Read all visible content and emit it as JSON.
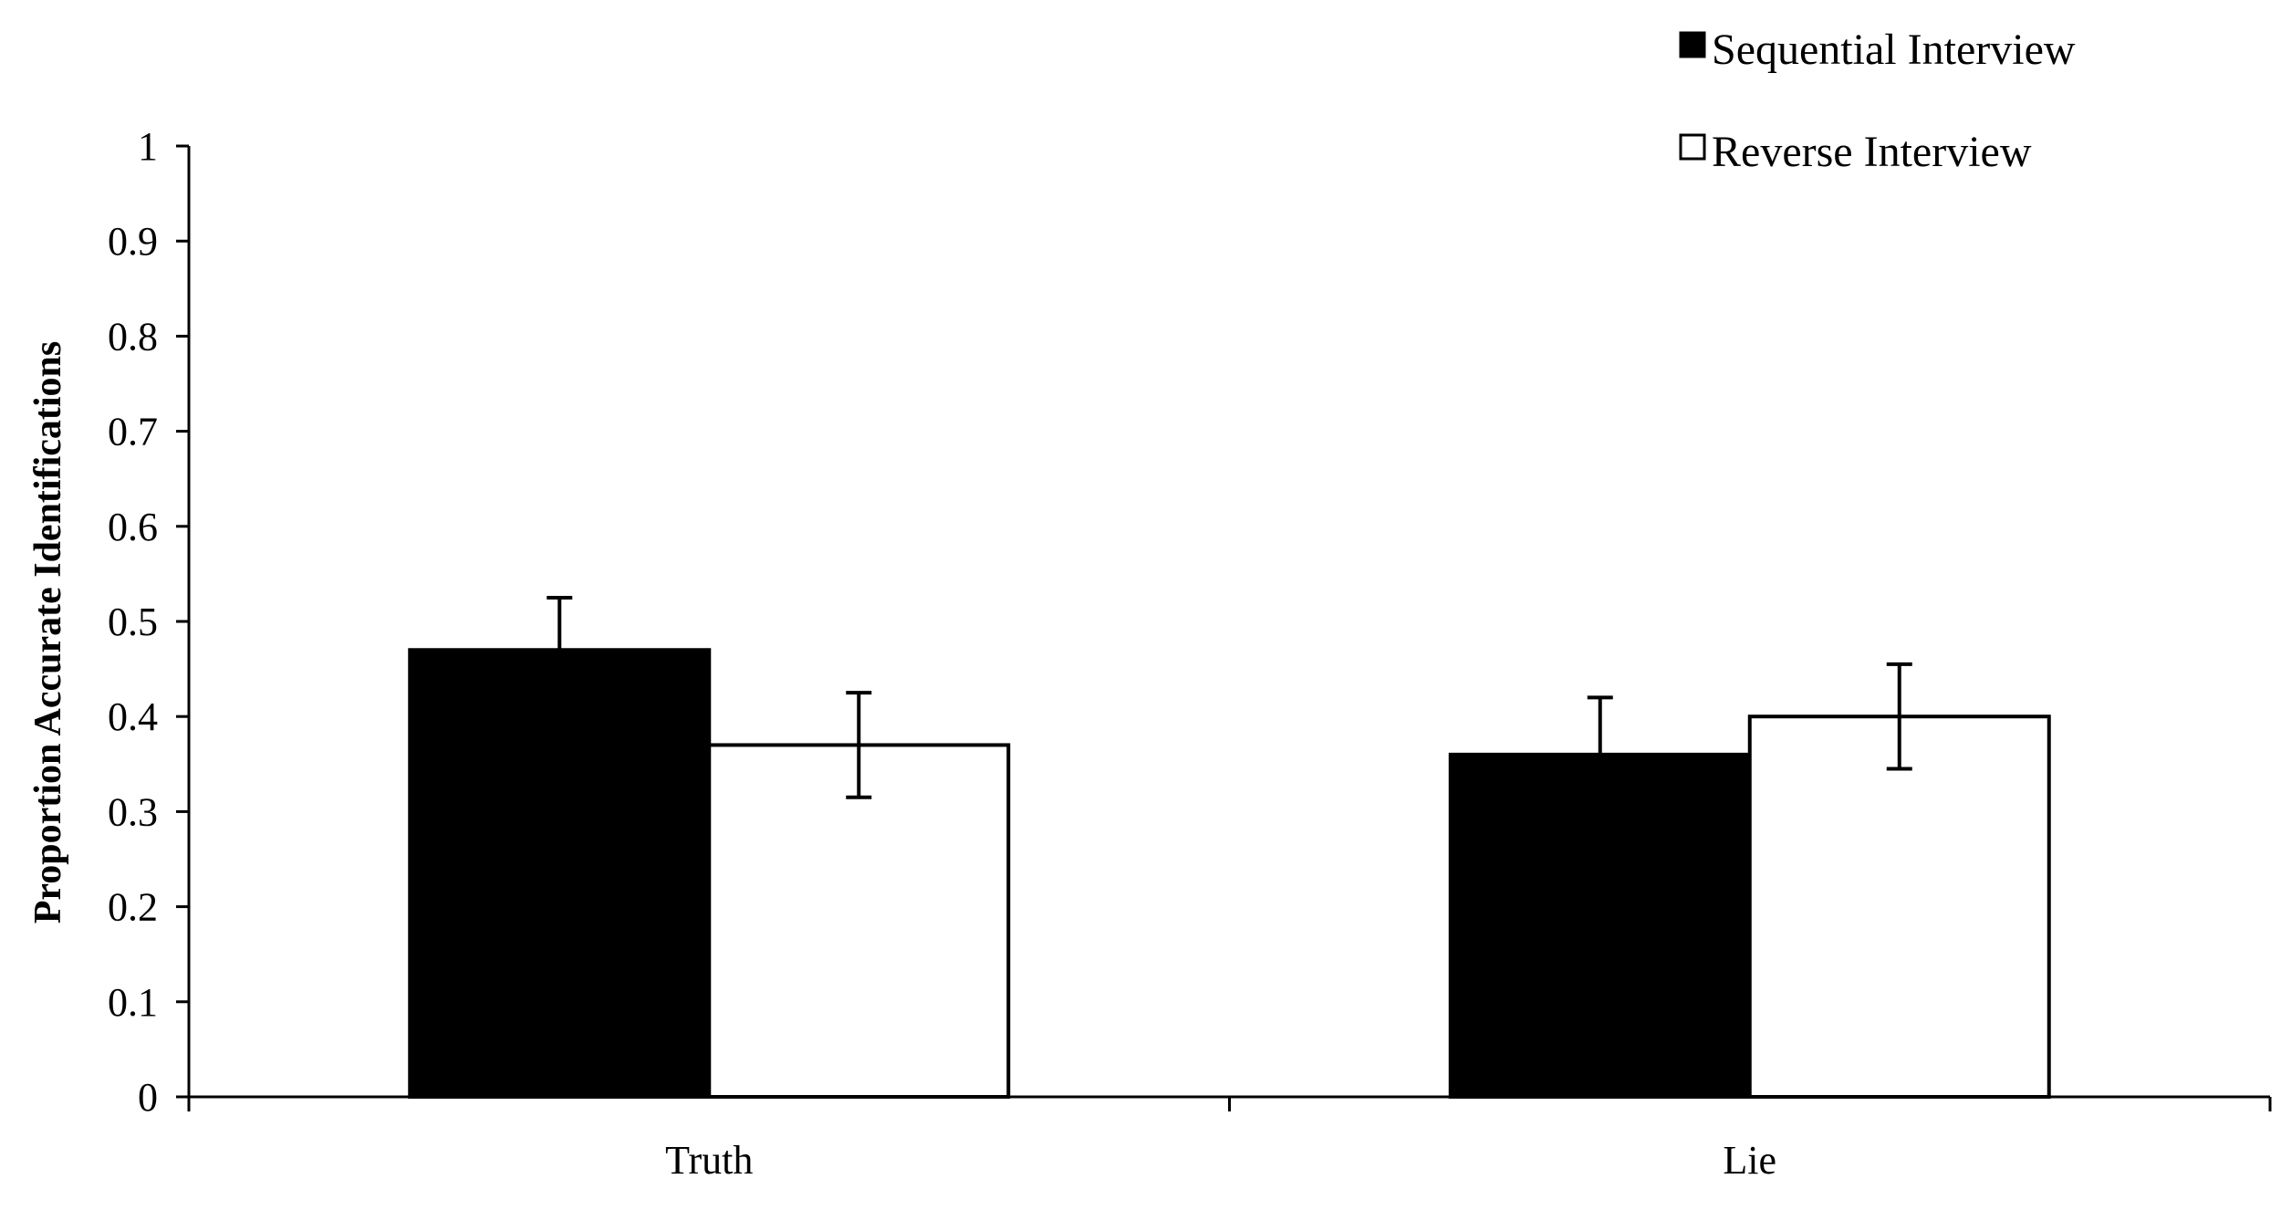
{
  "chart_data": {
    "type": "bar",
    "title": "",
    "xlabel": "",
    "ylabel": "Proportion Accurate Identifications",
    "ylim": [
      0,
      1
    ],
    "yticks": [
      "0",
      "0.1",
      "0.2",
      "0.3",
      "0.4",
      "0.5",
      "0.6",
      "0.7",
      "0.8",
      "0.9",
      "1"
    ],
    "categories": [
      "Truth",
      "Lie"
    ],
    "series": [
      {
        "name": "Sequential Interview",
        "values": [
          0.47,
          0.36
        ],
        "errors": [
          0.055,
          0.06
        ],
        "color": "#000000"
      },
      {
        "name": "Reverse Interview",
        "values": [
          0.37,
          0.4
        ],
        "errors": [
          0.055,
          0.055
        ],
        "color": "#ffffff"
      }
    ],
    "grid": false,
    "legend": {
      "position": "top-right"
    }
  }
}
